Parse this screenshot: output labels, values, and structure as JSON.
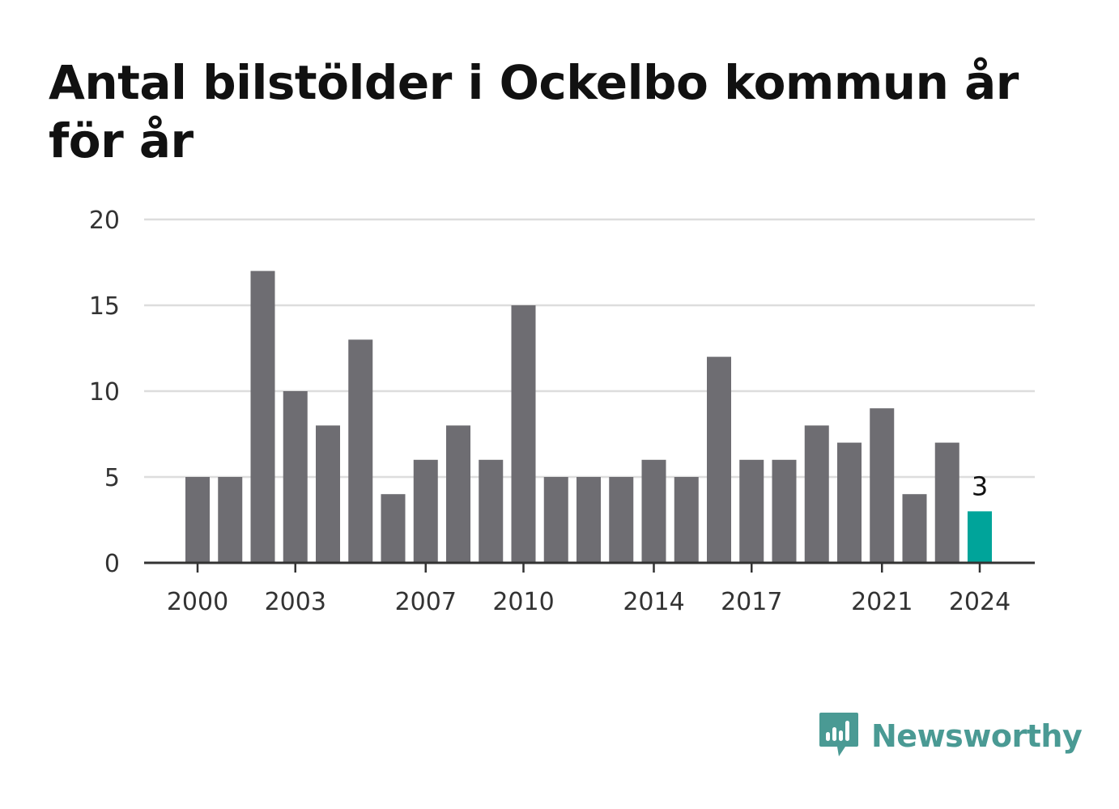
{
  "title": "Antal bilstölder i Ockelbo kommun år för år",
  "brand": {
    "name": "Newsworthy",
    "icon": "newsworthy-logo-icon",
    "color": "#4a9a94"
  },
  "chart_data": {
    "type": "bar",
    "title": "Antal bilstölder i Ockelbo kommun år för år",
    "xlabel": "",
    "ylabel": "",
    "categories": [
      "2000",
      "2001",
      "2002",
      "2003",
      "2004",
      "2005",
      "2006",
      "2007",
      "2008",
      "2009",
      "2010",
      "2011",
      "2012",
      "2013",
      "2014",
      "2015",
      "2016",
      "2017",
      "2018",
      "2019",
      "2020",
      "2021",
      "2022",
      "2023",
      "2024"
    ],
    "values": [
      5,
      5,
      17,
      10,
      8,
      13,
      4,
      6,
      8,
      6,
      15,
      5,
      5,
      5,
      6,
      5,
      12,
      6,
      6,
      8,
      7,
      9,
      4,
      7,
      3
    ],
    "x_tick_labels": [
      "2000",
      "2003",
      "2007",
      "2010",
      "2014",
      "2017",
      "2021",
      "2024"
    ],
    "y_ticks": [
      0,
      5,
      10,
      15,
      20
    ],
    "ylim": [
      0,
      20
    ],
    "grid": true,
    "bar_color": "#6e6d72",
    "highlight_color": "#00a49a",
    "highlight_category": "2024",
    "data_label": {
      "category": "2024",
      "text": "3"
    }
  }
}
